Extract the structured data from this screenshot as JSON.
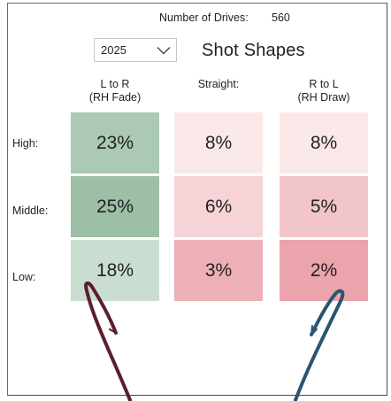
{
  "header": {
    "drives_label": "Number of Drives:",
    "drives_value": "560",
    "year_select": {
      "value": "2025"
    },
    "title": "Shot Shapes"
  },
  "columns": [
    {
      "line1": "L to R",
      "line2": "(RH Fade)"
    },
    {
      "line1": "Straight:",
      "line2": ""
    },
    {
      "line1": "R to L",
      "line2": "(RH Draw)"
    }
  ],
  "rows": [
    {
      "label": "High:",
      "values": [
        "23%",
        "8%",
        "8%"
      ],
      "colors": [
        "#abc9b5",
        "#fbe9ea",
        "#fbe9ea"
      ]
    },
    {
      "label": "Middle:",
      "values": [
        "25%",
        "6%",
        "5%"
      ],
      "colors": [
        "#9dbfa6",
        "#f6d3d7",
        "#f2c5cb"
      ]
    },
    {
      "label": "Low:",
      "values": [
        "18%",
        "3%",
        "2%"
      ],
      "colors": [
        "#c9ddd0",
        "#edb0b7",
        "#eba3ac"
      ]
    }
  ],
  "icons": {
    "dropdown": "chevron-down-icon",
    "left_arrow": "hand-drawn-arrow-icon",
    "right_arrow": "hand-drawn-arrow-icon"
  },
  "accent_colors": {
    "left_arrow": "#5a1e2a",
    "right_arrow": "#2a5570"
  }
}
